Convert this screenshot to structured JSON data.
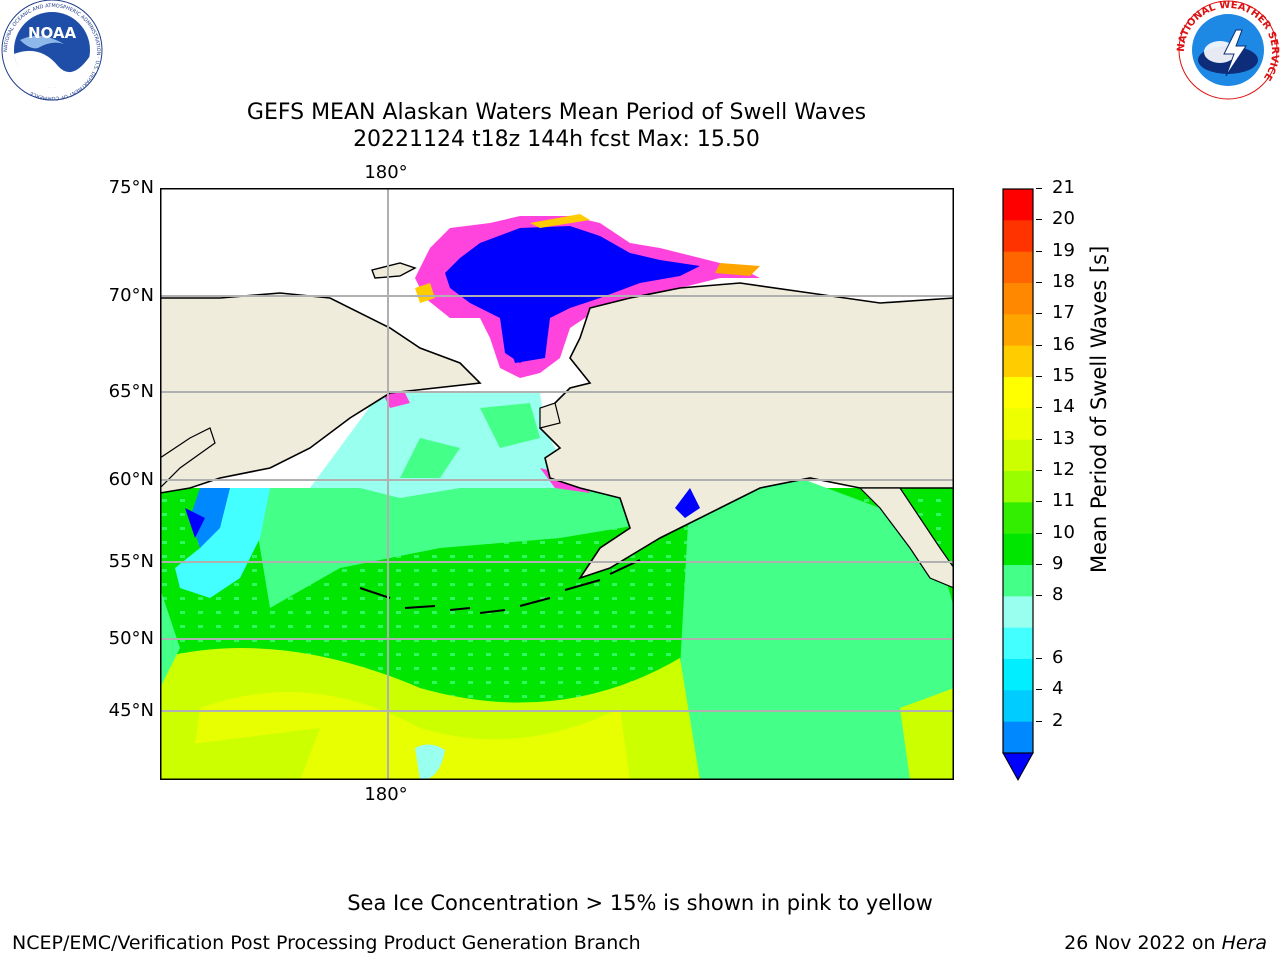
{
  "title": {
    "line1": "GEFS MEAN Alaskan Waters Mean Period of Swell Waves",
    "line2": "20221124 t18z 144h fcst   Max: 15.50"
  },
  "map": {
    "lat_labels": [
      "75°N",
      "70°N",
      "65°N",
      "60°N",
      "55°N",
      "50°N",
      "45°N"
    ],
    "lon_label_top": "180°",
    "lon_label_bottom": "180°"
  },
  "colorbar": {
    "title": "Mean Period of Swell Waves [s]",
    "ticks": [
      "21",
      "20",
      "19",
      "18",
      "17",
      "16",
      "15",
      "14",
      "13",
      "12",
      "11",
      "10",
      "9",
      "8",
      "6",
      "4",
      "2"
    ],
    "colors": [
      "#ff0000",
      "#ff3300",
      "#ff6600",
      "#ff8800",
      "#ffa500",
      "#ffcc00",
      "#ffff00",
      "#eeff00",
      "#ccff00",
      "#99ff00",
      "#33ee00",
      "#00e600",
      "#44ff88",
      "#99ffee",
      "#44ffff",
      "#00eeff",
      "#00ccff",
      "#0088ff"
    ],
    "extend_color": "#0000ff"
  },
  "logos": {
    "noaa_text": "NOAA",
    "noaa_ring": "NATIONAL OCEANIC AND ATMOSPHERIC ADMINISTRATION · U.S. DEPARTMENT OF COMMERCE",
    "nws_ring": "NATIONAL WEATHER SERVICE"
  },
  "note": "Sea Ice Concentration > 15% is shown in pink to yellow",
  "footer": {
    "left": "NCEP/EMC/Verification Post Processing Product Generation Branch",
    "right_prefix": "26 Nov 2022 on ",
    "right_machine": "Hera"
  }
}
